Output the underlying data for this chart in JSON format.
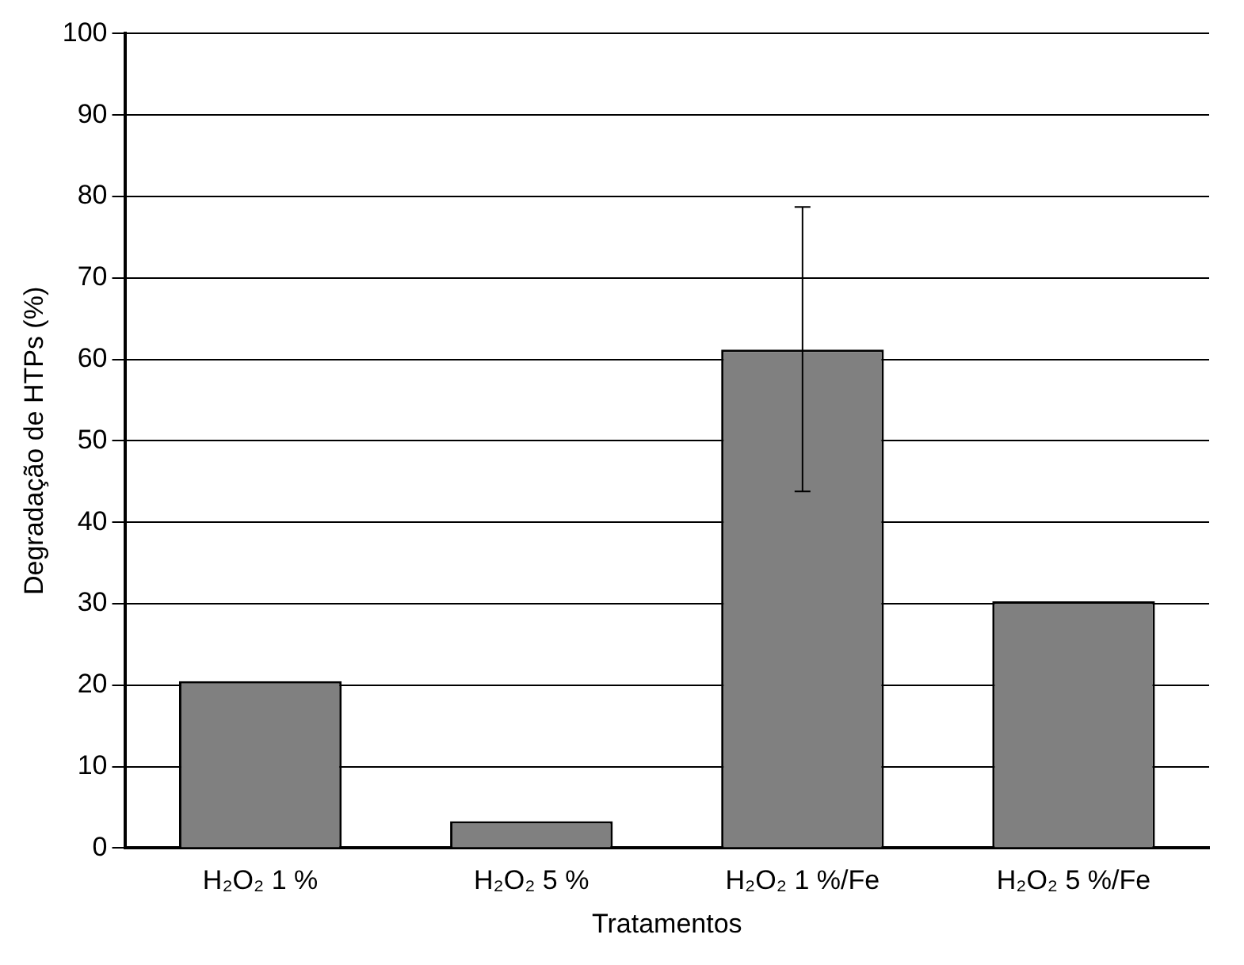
{
  "chart_data": {
    "type": "bar",
    "xlabel": "Tratamentos",
    "ylabel": "Degradação de HTPs (%)",
    "categories": [
      "H₂O₂ 1 %",
      "H₂O₂ 5 %",
      "H₂O₂ 1 %/Fe",
      "H₂O₂ 5 %/Fe"
    ],
    "values": [
      20.5,
      3.3,
      61.2,
      30.3
    ],
    "errors": [
      null,
      null,
      [
        43.8,
        78.7
      ],
      null
    ],
    "color": "#808080",
    "ylim": [
      0,
      100
    ],
    "yticks": [
      0,
      10,
      20,
      30,
      40,
      50,
      60,
      70,
      80,
      90,
      100
    ],
    "grid": "y",
    "legend": false
  }
}
